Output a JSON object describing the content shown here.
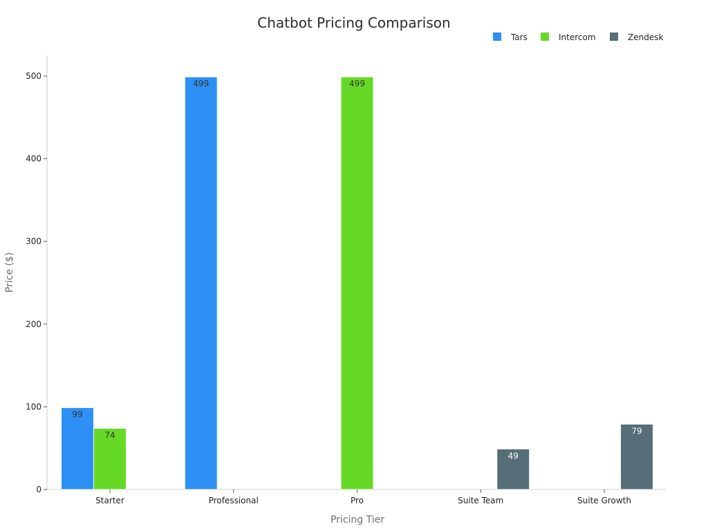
{
  "chart_data": {
    "type": "bar",
    "title": "Chatbot Pricing Comparison",
    "xlabel": "Pricing Tier",
    "ylabel": "Price ($)",
    "categories": [
      "Starter",
      "Professional",
      "Pro",
      "Suite Team",
      "Suite Growth"
    ],
    "series": [
      {
        "name": "Tars",
        "color": "#2e90f5",
        "label_color": "#333333",
        "values": [
          99,
          499,
          null,
          null,
          null
        ]
      },
      {
        "name": "Intercom",
        "color": "#66d927",
        "label_color": "#333333",
        "values": [
          74,
          null,
          499,
          null,
          null
        ]
      },
      {
        "name": "Zendesk",
        "color": "#566e78",
        "label_color": "#ffffff",
        "values": [
          null,
          null,
          null,
          49,
          79
        ]
      }
    ],
    "ylim": [
      0,
      525
    ],
    "yticks": [
      0,
      100,
      200,
      300,
      400,
      500
    ],
    "grid": false,
    "legend": "top-right"
  }
}
